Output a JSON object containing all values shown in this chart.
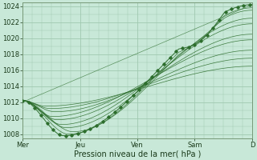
{
  "background_color": "#c8e8d8",
  "plot_bg_color": "#c8e8d8",
  "grid_color": "#a0c8b0",
  "line_color": "#2d6e2d",
  "marker_color": "#2d6e2d",
  "xlabel": "Pression niveau de la mer( hPa )",
  "ylim": [
    1007.5,
    1024.5
  ],
  "yticks": [
    1008,
    1010,
    1012,
    1014,
    1016,
    1018,
    1020,
    1022,
    1024
  ],
  "xtick_labels": [
    "Mer",
    "Jeu",
    "Ven",
    "Sam",
    "D"
  ],
  "xtick_positions": [
    0.0,
    0.25,
    0.5,
    0.75,
    1.0
  ],
  "figsize": [
    3.2,
    2.0
  ],
  "dpi": 100
}
